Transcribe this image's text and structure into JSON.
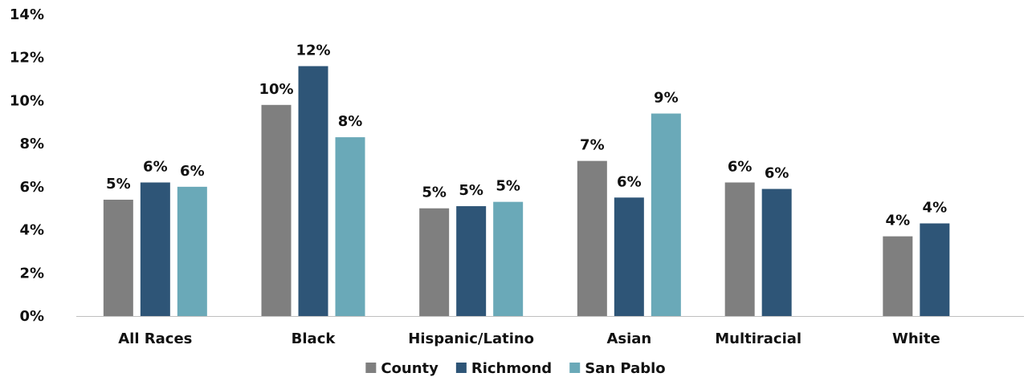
{
  "chart_data": {
    "type": "bar",
    "categories": [
      "All Races",
      "Black",
      "Hispanic/Latino",
      "Asian",
      "Multiracial",
      "White"
    ],
    "series": [
      {
        "name": "County",
        "color": "#7f7f7f",
        "values": [
          5.4,
          9.8,
          5.0,
          7.2,
          6.2,
          3.7
        ],
        "labels": [
          "5%",
          "10%",
          "5%",
          "7%",
          "6%",
          "4%"
        ]
      },
      {
        "name": "Richmond",
        "color": "#2e5577",
        "values": [
          6.2,
          11.6,
          5.1,
          5.5,
          5.9,
          4.3
        ],
        "labels": [
          "6%",
          "12%",
          "5%",
          "6%",
          "6%",
          "4%"
        ]
      },
      {
        "name": "San Pablo",
        "color": "#6aa9b8",
        "values": [
          6.0,
          8.3,
          5.3,
          9.4,
          null,
          null
        ],
        "labels": [
          "6%",
          "8%",
          "5%",
          "9%",
          "",
          ""
        ]
      }
    ],
    "ylim": [
      0,
      14
    ],
    "yticks": [
      0,
      2,
      4,
      6,
      8,
      10,
      12,
      14
    ],
    "ytick_labels": [
      "0%",
      "2%",
      "4%",
      "6%",
      "8%",
      "10%",
      "12%",
      "14%"
    ],
    "grid": false,
    "legend": "bottom-center"
  }
}
